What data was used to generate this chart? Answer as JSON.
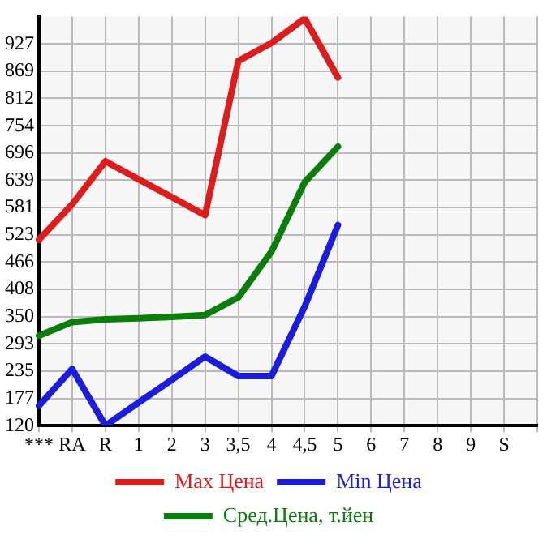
{
  "chart_data": {
    "type": "line",
    "categories": [
      "***",
      "RA",
      "R",
      "1",
      "2",
      "3",
      "3,5",
      "4",
      "4,5",
      "5",
      "6",
      "7",
      "8",
      "9",
      "S",
      null
    ],
    "series": [
      {
        "name": "Max Цена",
        "color": "#dd1c1c",
        "values": [
          513,
          588,
          679,
          641,
          603,
          565,
          891,
          929,
          981,
          856,
          null,
          null,
          null,
          null,
          null,
          null
        ]
      },
      {
        "name": "Min Цена",
        "color": "#1c1cdd",
        "values": [
          162,
          240,
          120,
          169,
          217,
          266,
          225,
          225,
          372,
          544,
          null,
          null,
          null,
          null,
          null,
          null
        ]
      },
      {
        "name": "Сред.Цена, т.йен",
        "color": "#0a7d0a",
        "values": [
          310,
          339,
          345,
          347,
          350,
          354,
          391,
          488,
          635,
          710,
          null,
          null,
          null,
          null,
          null,
          null
        ]
      }
    ],
    "ylim": [
      120,
      985
    ],
    "yticks": [
      120,
      177,
      235,
      293,
      350,
      408,
      466,
      523,
      581,
      639,
      696,
      754,
      812,
      869,
      927
    ],
    "grid": true,
    "legend": "bottom",
    "marker": "none",
    "line_style": "solid"
  }
}
